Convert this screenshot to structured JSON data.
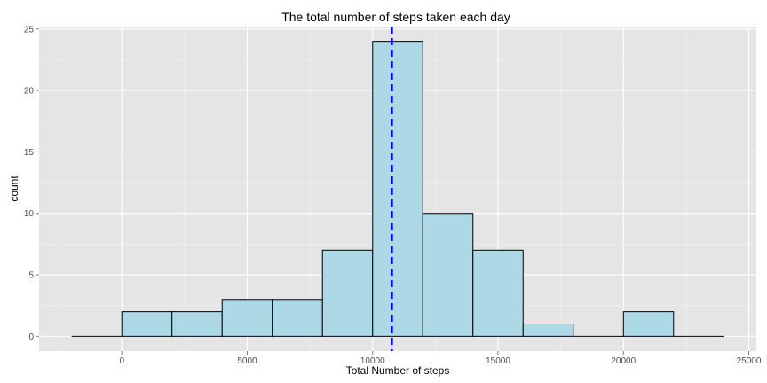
{
  "chart_data": {
    "type": "bar",
    "title": "The total number of steps taken each day",
    "xlabel": "Total Number of steps",
    "ylabel": "count",
    "bin_width": 2000,
    "bins": [
      {
        "start": -2000,
        "end": 0,
        "count": 0
      },
      {
        "start": 0,
        "end": 2000,
        "count": 2
      },
      {
        "start": 2000,
        "end": 4000,
        "count": 2
      },
      {
        "start": 4000,
        "end": 6000,
        "count": 3
      },
      {
        "start": 6000,
        "end": 8000,
        "count": 3
      },
      {
        "start": 8000,
        "end": 10000,
        "count": 7
      },
      {
        "start": 10000,
        "end": 12000,
        "count": 24
      },
      {
        "start": 12000,
        "end": 14000,
        "count": 10
      },
      {
        "start": 14000,
        "end": 16000,
        "count": 7
      },
      {
        "start": 16000,
        "end": 18000,
        "count": 1
      },
      {
        "start": 18000,
        "end": 20000,
        "count": 0
      },
      {
        "start": 20000,
        "end": 22000,
        "count": 2
      },
      {
        "start": 22000,
        "end": 24000,
        "count": 0
      }
    ],
    "xlim": [
      -3300,
      25300
    ],
    "ylim": [
      -1.2,
      25.2
    ],
    "x_ticks": [
      0,
      5000,
      10000,
      15000,
      20000,
      25000
    ],
    "x_tick_labels": [
      "0",
      "5000",
      "10000",
      "15000",
      "20000",
      "25000"
    ],
    "y_ticks": [
      0,
      5,
      10,
      15,
      20,
      25
    ],
    "y_tick_labels": [
      "0",
      "5",
      "10",
      "15",
      "20",
      "25"
    ],
    "vline": {
      "x": 10766,
      "style": "dashed"
    },
    "grid": true,
    "colors": {
      "panel_background": "#e5e5e5",
      "grid_major": "#ffffff",
      "grid_minor": "#f2f2f2",
      "bar_fill": "#add8e6",
      "bar_outline": "#000000",
      "vline": "#0000ff",
      "tick_mark": "#7f7f7f"
    }
  }
}
